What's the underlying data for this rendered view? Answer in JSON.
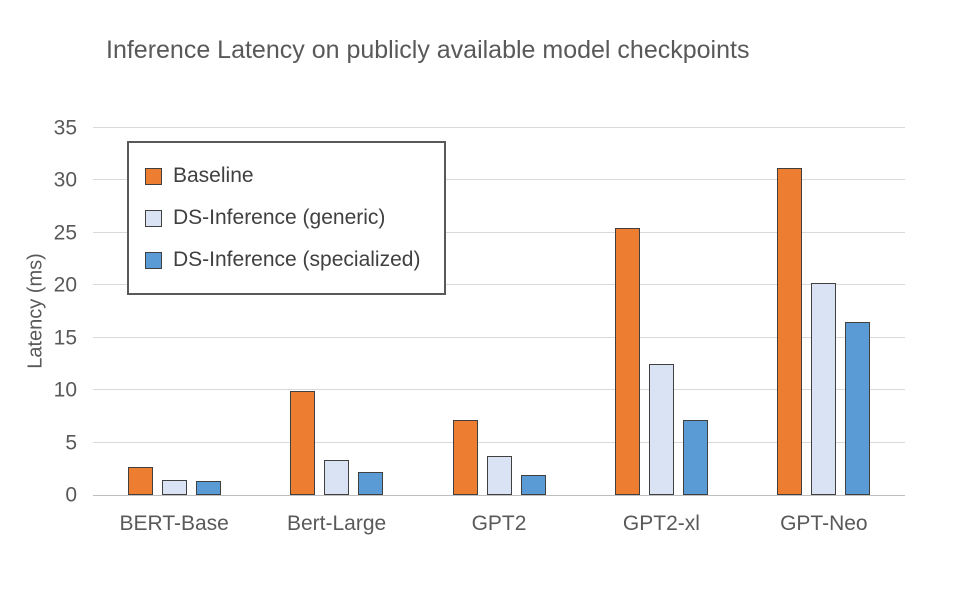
{
  "chart_data": {
    "type": "bar",
    "title": "Inference Latency on publicly available model checkpoints",
    "ylabel": "Latency (ms)",
    "xlabel": "",
    "categories": [
      "BERT-Base",
      "Bert-Large",
      "GPT2",
      "GPT2-xl",
      "GPT-Neo"
    ],
    "series": [
      {
        "name": "Baseline",
        "color": "#ED7D31",
        "values": [
          2.7,
          9.9,
          7.2,
          25.5,
          31.2
        ]
      },
      {
        "name": "DS-Inference (generic)",
        "color": "#DAE3F3",
        "values": [
          1.4,
          3.3,
          3.7,
          12.5,
          20.2
        ]
      },
      {
        "name": "DS-Inference (specialized)",
        "color": "#5B9BD5",
        "values": [
          1.3,
          2.2,
          1.9,
          7.2,
          16.5
        ]
      }
    ],
    "ylim": [
      0,
      35
    ],
    "ytick_step": 5,
    "grid": true,
    "legend_position": "top-left",
    "bar_border_color": "#404040",
    "axis_text_color": "#595959"
  }
}
